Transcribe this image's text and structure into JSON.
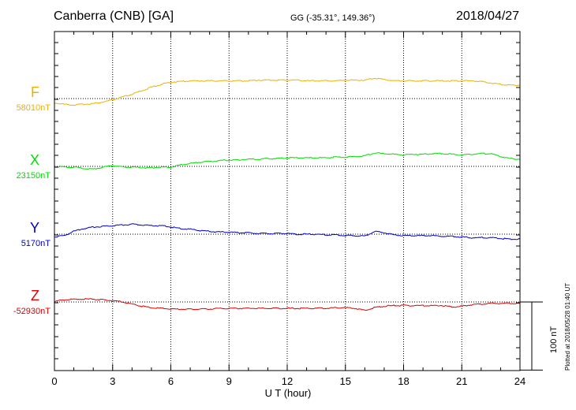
{
  "header": {
    "station": "Canberra (CNB)  [GA]",
    "coords": "GG (-35.31°, 149.36°)",
    "date": "2018/04/27"
  },
  "colors": {
    "F": "#f0b000",
    "X": "#00dd00",
    "Y": "#0000cc",
    "Z": "#dd0000"
  },
  "scale_bar": {
    "label": "100 nT",
    "value_nT": 100
  },
  "plotted_note": "Plotted at 2018/05/28 01:40 UT",
  "chart_data": {
    "type": "line",
    "title": "Canberra (CNB)  [GA]",
    "xlabel": "U T (hour)",
    "ylabel": "",
    "xlim": [
      0,
      24
    ],
    "xticks": [
      0,
      3,
      6,
      9,
      12,
      15,
      18,
      21,
      24
    ],
    "grid": true,
    "y_units": "nT",
    "series": [
      {
        "name": "F",
        "baseline_label": "58010nT",
        "baseline_nT": 58010,
        "x": [
          0,
          0.5,
          1,
          1.5,
          2,
          2.5,
          3,
          3.5,
          4,
          4.5,
          5,
          5.5,
          6,
          6.5,
          7,
          7.5,
          8,
          8.5,
          9,
          9.5,
          10,
          10.5,
          11,
          11.5,
          12,
          12.5,
          13,
          13.5,
          14,
          14.5,
          15,
          15.5,
          16,
          16.5,
          17,
          17.5,
          18,
          18.5,
          19,
          19.5,
          20,
          20.5,
          21,
          21.5,
          22,
          22.5,
          23,
          23.5,
          24
        ],
        "values": [
          58004,
          58002,
          58001,
          58002,
          58003,
          58005,
          58008,
          58012,
          58016,
          58021,
          58026,
          58030,
          58033,
          58034,
          58035,
          58035,
          58035,
          58035,
          58035,
          58035,
          58035,
          58036,
          58036,
          58036,
          58036,
          58036,
          58035,
          58035,
          58035,
          58035,
          58036,
          58036,
          58036,
          58039,
          58037,
          58035,
          58035,
          58035,
          58035,
          58035,
          58035,
          58035,
          58035,
          58035,
          58034,
          58032,
          58030,
          58029,
          58029
        ]
      },
      {
        "name": "X",
        "baseline_label": "23150nT",
        "baseline_nT": 23150,
        "x": [
          0,
          0.5,
          1,
          1.5,
          2,
          2.5,
          3,
          3.5,
          4,
          4.5,
          5,
          5.5,
          6,
          6.5,
          7,
          7.5,
          8,
          8.5,
          9,
          9.5,
          10,
          10.5,
          11,
          11.5,
          12,
          12.5,
          13,
          13.5,
          14,
          14.5,
          15,
          15.5,
          16,
          16.5,
          17,
          17.5,
          18,
          18.5,
          19,
          19.5,
          20,
          20.5,
          21,
          21.5,
          22,
          22.5,
          23,
          23.5,
          24
        ],
        "values": [
          23150,
          23149,
          23149,
          23147,
          23146,
          23149,
          23151,
          23149,
          23149,
          23148,
          23148,
          23149,
          23149,
          23152,
          23154,
          23156,
          23157,
          23158,
          23159,
          23159,
          23160,
          23160,
          23161,
          23161,
          23162,
          23162,
          23162,
          23162,
          23162,
          23163,
          23163,
          23164,
          23165,
          23169,
          23168,
          23167,
          23166,
          23167,
          23167,
          23168,
          23168,
          23167,
          23166,
          23167,
          23168,
          23168,
          23164,
          23161,
          23160
        ]
      },
      {
        "name": "Y",
        "baseline_label": "5170nT",
        "baseline_nT": 5170,
        "x": [
          0,
          0.5,
          1,
          1.5,
          2,
          2.5,
          3,
          3.5,
          4,
          4.5,
          5,
          5.5,
          6,
          6.5,
          7,
          7.5,
          8,
          8.5,
          9,
          9.5,
          10,
          10.5,
          11,
          11.5,
          12,
          12.5,
          13,
          13.5,
          14,
          14.5,
          15,
          15.5,
          16,
          16.5,
          17,
          17.5,
          18,
          18.5,
          19,
          19.5,
          20,
          20.5,
          21,
          21.5,
          22,
          22.5,
          23,
          23.5,
          24
        ],
        "values": [
          5166,
          5168,
          5174,
          5178,
          5180,
          5181,
          5182,
          5183,
          5184,
          5183,
          5182,
          5182,
          5180,
          5178,
          5177,
          5175,
          5174,
          5173,
          5173,
          5172,
          5172,
          5171,
          5171,
          5171,
          5171,
          5170,
          5170,
          5170,
          5169,
          5169,
          5168,
          5168,
          5167,
          5174,
          5172,
          5169,
          5168,
          5168,
          5168,
          5168,
          5167,
          5167,
          5166,
          5165,
          5165,
          5165,
          5164,
          5163,
          5163
        ]
      },
      {
        "name": "Z",
        "baseline_label": "-52930nT",
        "baseline_nT": -52930,
        "x": [
          0,
          0.5,
          1,
          1.5,
          2,
          2.5,
          3,
          3.5,
          4,
          4.5,
          5,
          5.5,
          6,
          6.5,
          7,
          7.5,
          8,
          8.5,
          9,
          9.5,
          10,
          10.5,
          11,
          11.5,
          12,
          12.5,
          13,
          13.5,
          14,
          14.5,
          15,
          15.5,
          16,
          16.5,
          17,
          17.5,
          18,
          18.5,
          19,
          19.5,
          20,
          20.5,
          21,
          21.5,
          22,
          22.5,
          23,
          23.5,
          24
        ],
        "values": [
          -52929,
          -52927,
          -52926,
          -52926,
          -52926,
          -52927,
          -52928,
          -52930,
          -52933,
          -52936,
          -52938,
          -52939,
          -52940,
          -52940,
          -52940,
          -52940,
          -52940,
          -52939,
          -52939,
          -52939,
          -52939,
          -52939,
          -52939,
          -52939,
          -52939,
          -52939,
          -52939,
          -52939,
          -52939,
          -52938,
          -52938,
          -52939,
          -52942,
          -52938,
          -52936,
          -52935,
          -52935,
          -52935,
          -52935,
          -52935,
          -52935,
          -52937,
          -52936,
          -52934,
          -52933,
          -52932,
          -52932,
          -52932,
          -52932
        ]
      }
    ]
  }
}
